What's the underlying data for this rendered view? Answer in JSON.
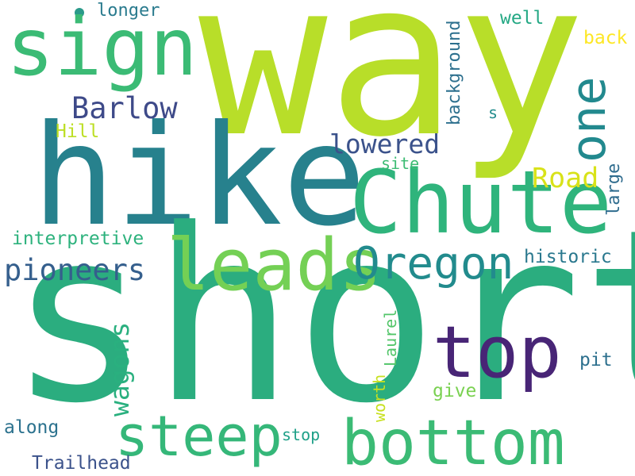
{
  "words": {
    "way": {
      "text": "way",
      "color": "#b8de29"
    },
    "short": {
      "text": "short",
      "color": "#2bad7f"
    },
    "hike": {
      "text": "hike",
      "color": "#27818d"
    },
    "sign": {
      "text": "sign",
      "color": "#3bbb75"
    },
    "chute": {
      "text": "Chute",
      "color": "#2fb47c"
    },
    "leads": {
      "text": "leads",
      "color": "#74d055"
    },
    "oregon": {
      "text": "Oregon",
      "color": "#228b8d"
    },
    "one": {
      "text": "one",
      "color": "#22898e"
    },
    "top": {
      "text": "top",
      "color": "#482576"
    },
    "bottom": {
      "text": "bottom",
      "color": "#3bbb75"
    },
    "steep": {
      "text": "steep",
      "color": "#35b779"
    },
    "pioneers": {
      "text": "pioneers",
      "color": "#355f8d"
    },
    "barlow": {
      "text": "Barlow",
      "color": "#3e4a89"
    },
    "lowered": {
      "text": "lowered",
      "color": "#3b528b"
    },
    "road": {
      "text": "Road",
      "color": "#d8e219"
    },
    "wagons": {
      "text": "wagons",
      "color": "#2ab07f"
    },
    "interpretive": {
      "text": "interpretive",
      "color": "#2db27d"
    },
    "historic": {
      "text": "historic",
      "color": "#2a788e"
    },
    "pit": {
      "text": "pit",
      "color": "#2d708e"
    },
    "along": {
      "text": "along",
      "color": "#2c728e"
    },
    "trailhead": {
      "text": "Trailhead",
      "color": "#3b528b"
    },
    "longer": {
      "text": "longer",
      "color": "#2a7b8e"
    },
    "well": {
      "text": "well",
      "color": "#24a884"
    },
    "back": {
      "text": "back",
      "color": "#fde725"
    },
    "background": {
      "text": "background",
      "color": "#2d708e"
    },
    "hill": {
      "text": "Hill",
      "color": "#bddf26"
    },
    "site": {
      "text": "site",
      "color": "#3dbc74"
    },
    "s": {
      "text": "s",
      "color": "#228c8d"
    },
    "large": {
      "text": "large",
      "color": "#2f6c8e"
    },
    "worth": {
      "text": "worth",
      "color": "#c7e020"
    },
    "laurel": {
      "text": "Laurel",
      "color": "#52c569"
    },
    "give": {
      "text": "give",
      "color": "#7ad151"
    },
    "stop": {
      "text": "stop",
      "color": "#1fa088"
    }
  }
}
